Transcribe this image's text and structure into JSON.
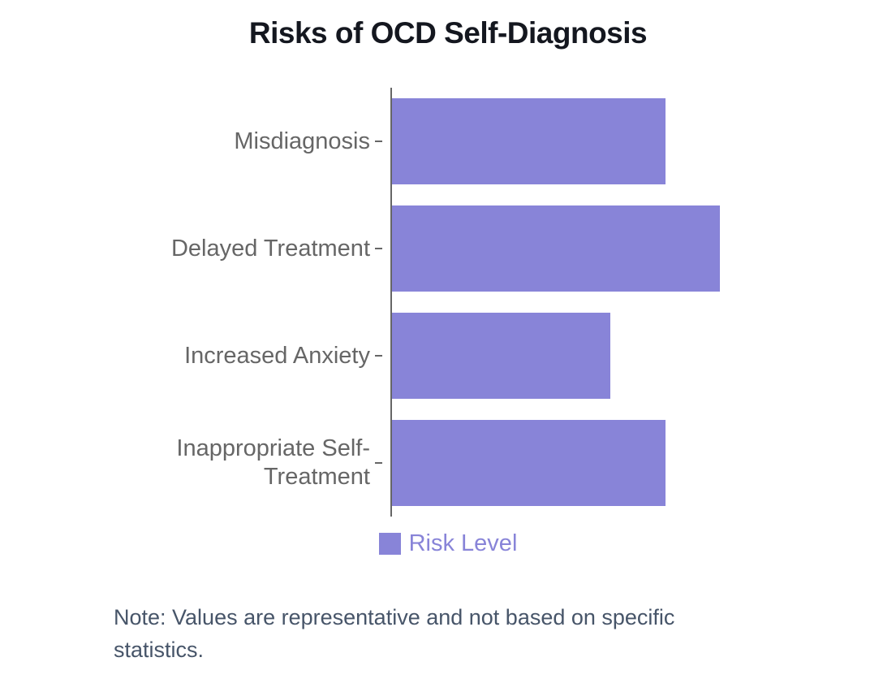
{
  "title": "Risks of OCD Self-Diagnosis",
  "chart_data": {
    "type": "bar",
    "orientation": "horizontal",
    "title": "Risks of OCD Self-Diagnosis",
    "categories": [
      "Misdiagnosis",
      "Delayed Treatment",
      "Increased Anxiety",
      "Inappropriate Self-Treatment"
    ],
    "series": [
      {
        "name": "Risk Level",
        "values": [
          75,
          90,
          60,
          75
        ]
      }
    ],
    "xlabel": "",
    "ylabel": "",
    "xlim": [
      0,
      100
    ],
    "x_axis_ticks_visible": false,
    "grid": false,
    "legend_position": "bottom",
    "colors": {
      "bar": "#8884d8",
      "axis": "#666666",
      "category_labels": "#666666",
      "title": "#14171f"
    }
  },
  "legend": {
    "label": "Risk Level",
    "swatch_color": "#8884d8"
  },
  "note": "Note: Values are representative and not based on specific statistics."
}
